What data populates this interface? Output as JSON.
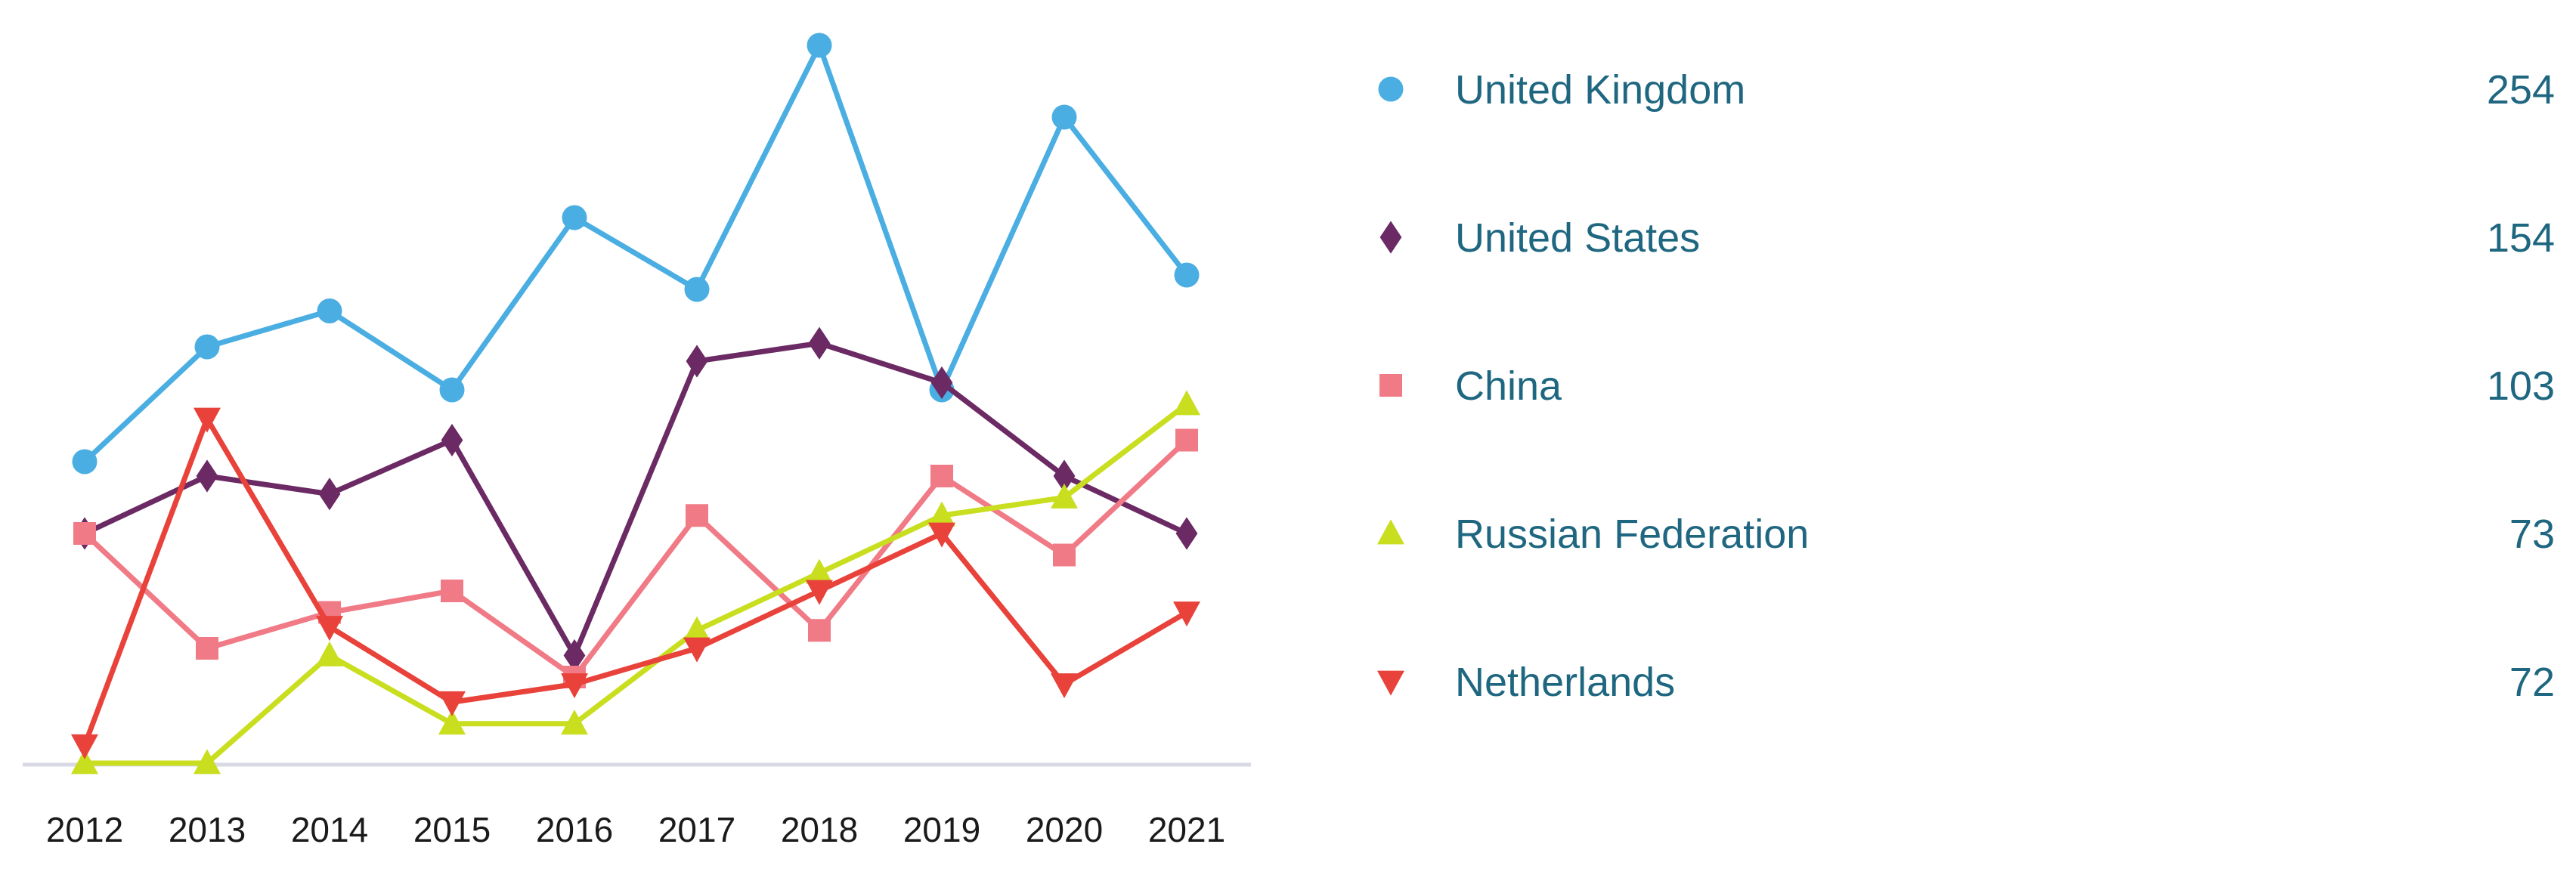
{
  "chart_data": {
    "type": "line",
    "title": "",
    "xlabel": "",
    "ylabel": "",
    "ylim": [
      0,
      100
    ],
    "grid": false,
    "legend_position": "right",
    "categories": [
      "2012",
      "2013",
      "2014",
      "2015",
      "2016",
      "2017",
      "2018",
      "2019",
      "2020",
      "2021"
    ],
    "series": [
      {
        "name": "United Kingdom",
        "total": "254",
        "color": "#4aaee2",
        "marker": "circle",
        "values": [
          42,
          58,
          63,
          52,
          76,
          66,
          100,
          52,
          90,
          68
        ]
      },
      {
        "name": "United States",
        "total": "154",
        "color": "#6b2a63",
        "marker": "diamond",
        "values": [
          32,
          40,
          37.5,
          45,
          15,
          56,
          58.5,
          53,
          40,
          32
        ]
      },
      {
        "name": "China",
        "total": "103",
        "color": "#f07a86",
        "marker": "square",
        "values": [
          32,
          16,
          21,
          24,
          12,
          34.5,
          18.5,
          40,
          29,
          45
        ]
      },
      {
        "name": "Russian Federation",
        "total": "73",
        "color": "#c8de1e",
        "marker": "triangle-up",
        "values": [
          0,
          0,
          15,
          5.5,
          5.5,
          18.5,
          26.5,
          34.5,
          37,
          50
        ]
      },
      {
        "name": "Netherlands",
        "total": "72",
        "color": "#e8423a",
        "marker": "triangle-down",
        "values": [
          2.5,
          48,
          19,
          8.5,
          11,
          16,
          24,
          32,
          11,
          21
        ]
      }
    ]
  }
}
